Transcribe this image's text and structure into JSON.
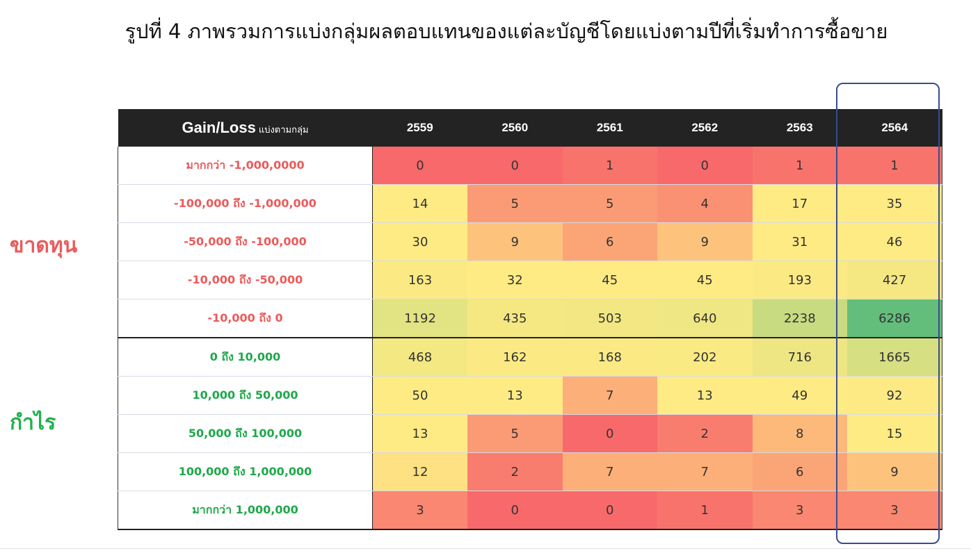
{
  "title": "รูปที่ 4 ภาพรวมการแบ่งกลุ่มผลตอบแทนของแต่ละบัญชีโดยแบ่งตามปีที่เริ่มทำการซื้อขาย",
  "side_labels": {
    "loss": "ขาดทุน",
    "gain": "กำไร"
  },
  "colors": {
    "loss_text": "#ec5a5a",
    "gain_text": "#1fa84a",
    "header_bg": "#232323",
    "highlight_border": "#3a4c8e",
    "scale_low": "#f8696b",
    "scale_mid": "#ffeb84",
    "scale_high": "#63be7b"
  },
  "chart_data": {
    "type": "heatmap",
    "header": {
      "main": "Gain/Loss",
      "sub": "แบ่งตามกลุ่ม"
    },
    "columns": [
      "2559",
      "2560",
      "2561",
      "2562",
      "2563",
      "2564"
    ],
    "highlighted_column": "2564",
    "rows": [
      {
        "label": "มากกว่า -1,000,0000",
        "group": "loss",
        "values": [
          0,
          0,
          1,
          0,
          1,
          1
        ]
      },
      {
        "label": "-100,000 ถึง -1,000,000",
        "group": "loss",
        "values": [
          14,
          5,
          5,
          4,
          17,
          35
        ]
      },
      {
        "label": "-50,000 ถึง -100,000",
        "group": "loss",
        "values": [
          30,
          9,
          6,
          9,
          31,
          46
        ]
      },
      {
        "label": "-10,000 ถึง -50,000",
        "group": "loss",
        "values": [
          163,
          32,
          45,
          45,
          193,
          427
        ]
      },
      {
        "label": "-10,000 ถึง 0",
        "group": "loss",
        "values": [
          1192,
          435,
          503,
          640,
          2238,
          6286
        ]
      },
      {
        "label": "0 ถึง 10,000",
        "group": "gain",
        "values": [
          468,
          162,
          168,
          202,
          716,
          1665
        ]
      },
      {
        "label": "10,000 ถึง 50,000",
        "group": "gain",
        "values": [
          50,
          13,
          7,
          13,
          49,
          92
        ]
      },
      {
        "label": "50,000 ถึง 100,000",
        "group": "gain",
        "values": [
          13,
          5,
          0,
          2,
          8,
          15
        ]
      },
      {
        "label": "100,000 ถึง 1,000,000",
        "group": "gain",
        "values": [
          12,
          2,
          7,
          7,
          6,
          9
        ]
      },
      {
        "label": "มากกว่า 1,000,000",
        "group": "gain",
        "values": [
          3,
          0,
          0,
          1,
          3,
          3
        ]
      }
    ]
  }
}
